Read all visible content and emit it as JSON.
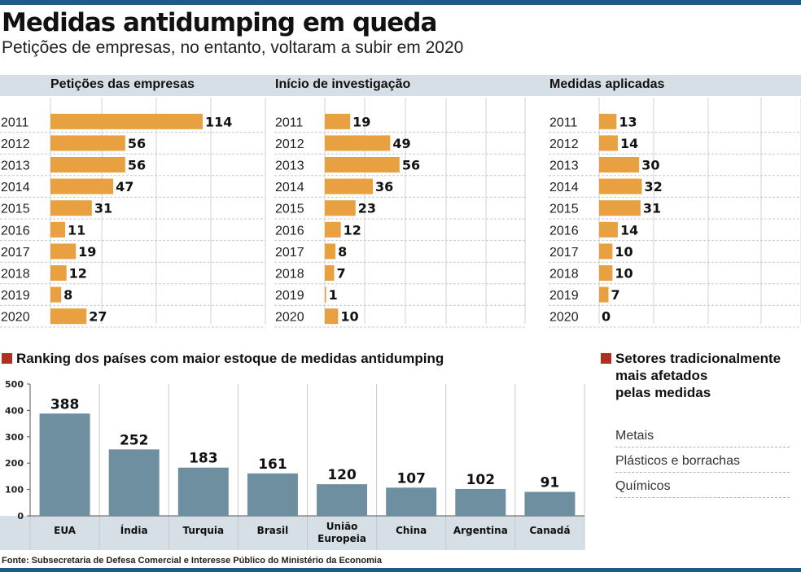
{
  "title": "Medidas antidumping em queda",
  "subtitle": "Petições de empresas, no entanto, voltaram a subir em 2020",
  "colors": {
    "bar_orange": "#e8a040",
    "bar_blue": "#6e8fa0",
    "panel_bg": "#d6dfe5",
    "accent_square": "#b03020",
    "rule": "#1f5a82"
  },
  "chart_data": [
    {
      "type": "bar",
      "orientation": "horizontal",
      "title": "Petições das empresas",
      "categories": [
        "2011",
        "2012",
        "2013",
        "2014",
        "2015",
        "2016",
        "2017",
        "2018",
        "2019",
        "2020"
      ],
      "values": [
        114,
        56,
        56,
        47,
        31,
        11,
        19,
        12,
        8,
        27
      ],
      "grid": true
    },
    {
      "type": "bar",
      "orientation": "horizontal",
      "title": "Início de investigação",
      "categories": [
        "2011",
        "2012",
        "2013",
        "2014",
        "2015",
        "2016",
        "2017",
        "2018",
        "2019",
        "2020"
      ],
      "values": [
        19,
        49,
        56,
        36,
        23,
        12,
        8,
        7,
        1,
        10
      ],
      "grid": true
    },
    {
      "type": "bar",
      "orientation": "horizontal",
      "title": "Medidas aplicadas",
      "categories": [
        "2011",
        "2012",
        "2013",
        "2014",
        "2015",
        "2016",
        "2017",
        "2018",
        "2019",
        "2020"
      ],
      "values": [
        13,
        14,
        30,
        32,
        31,
        14,
        10,
        10,
        7,
        0
      ],
      "grid": true
    },
    {
      "type": "bar",
      "orientation": "vertical",
      "title": "Ranking dos países com maior estoque de medidas antidumping",
      "categories": [
        "EUA",
        "Índia",
        "Turquia",
        "Brasil",
        "União Europeia",
        "China",
        "Argentina",
        "Canadá"
      ],
      "values": [
        388,
        252,
        183,
        161,
        120,
        107,
        102,
        91
      ],
      "ylim": [
        0,
        500
      ],
      "yticks": [
        0,
        100,
        200,
        300,
        400,
        500
      ],
      "grid": true
    }
  ],
  "sectors": {
    "title_lines": [
      "Setores tradicionalmente",
      "mais afetados",
      "pelas medidas"
    ],
    "items": [
      "Metais",
      "Plásticos e borrachas",
      "Químicos"
    ]
  },
  "source": "Fonte: Subsecretaria de Defesa Comercial e Interesse Público do Ministério da Economia"
}
